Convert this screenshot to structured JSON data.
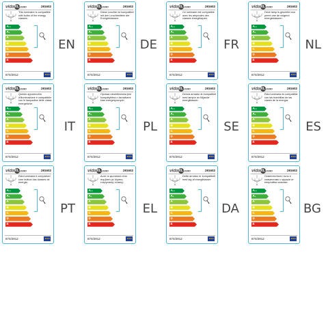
{
  "logo": {
    "brand_prefix": "vida",
    "brand_mark": "XL",
    "brand_suffix": ".com"
  },
  "model_number": "281602",
  "regulation": "874/2012",
  "energy_classes": [
    {
      "label": "A",
      "plus": "++",
      "color": "#00963f"
    },
    {
      "label": "A",
      "plus": "+",
      "color": "#3fae3a"
    },
    {
      "label": "A",
      "plus": "",
      "color": "#8cc63e"
    },
    {
      "label": "B",
      "plus": "",
      "color": "#e6e11a"
    },
    {
      "label": "C",
      "plus": "",
      "color": "#f6b712"
    },
    {
      "label": "D",
      "plus": "",
      "color": "#ed7a1f"
    },
    {
      "label": "E",
      "plus": "",
      "color": "#e3271c"
    }
  ],
  "labels": [
    {
      "lang": "EN",
      "text": "This luminaire is compatible with bulbs of the energy classes:"
    },
    {
      "lang": "DE",
      "text": "Diese Leuchte ist kompatibel mit den Leuchtmitteln der Energieklassen:"
    },
    {
      "lang": "FR",
      "text": "Ce luminaire est compatible avec les ampoules des classes énergétiques:"
    },
    {
      "lang": "NL",
      "text": "Deze lamp is geschikt voor peren van de volgend energieklassen:"
    },
    {
      "lang": "IT",
      "text": "Questo apparecchio d'illuminazione è compatibile con le lampadine delle classi energetiche:"
    },
    {
      "lang": "PL",
      "text": "Oprawa oświetleniowa jest kompatybilna z żarówkami klas energetycznych:"
    },
    {
      "lang": "SE",
      "text": "Denna armatur är kompatibel med lampor av följande energiklasser:"
    },
    {
      "lang": "ES",
      "text": "Esta luminaria es compatible con las bombillas de las clases de la energía:"
    },
    {
      "lang": "PT",
      "text": "Esta luminária é compatível com bulbos das classes de energia:"
    },
    {
      "lang": "EL",
      "text": "Αυτό το φωτιστικό είναι συμβατό με λάμπες ενεργειακής κλάσης:"
    },
    {
      "lang": "DA",
      "text": "Dette armatur er kompatibelt med lag af energiklasser:"
    },
    {
      "lang": "BG",
      "text": "Осветителното тяло е съвместимо с крушки от енергийни класове:"
    }
  ],
  "colors": {
    "frame": "#55b3d8",
    "eu_flag": "#1f3f99",
    "eu_stars": "#ffd200"
  },
  "icons": [
    "chandelier-icon",
    "bulb-icon",
    "eu-flag-icon"
  ]
}
